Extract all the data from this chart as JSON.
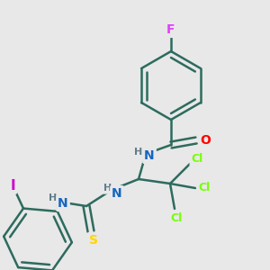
{
  "background_color": "#e8e8e8",
  "bond_color": "#2d6b5e",
  "atom_colors": {
    "F": "#e040fb",
    "O": "#ff0000",
    "N": "#1565c0",
    "H": "#607d8b",
    "Cl": "#76ff03",
    "S": "#ffd600",
    "I": "#d000d0",
    "C": "#2d6b5e"
  },
  "figsize": [
    3.0,
    3.0
  ],
  "dpi": 100
}
